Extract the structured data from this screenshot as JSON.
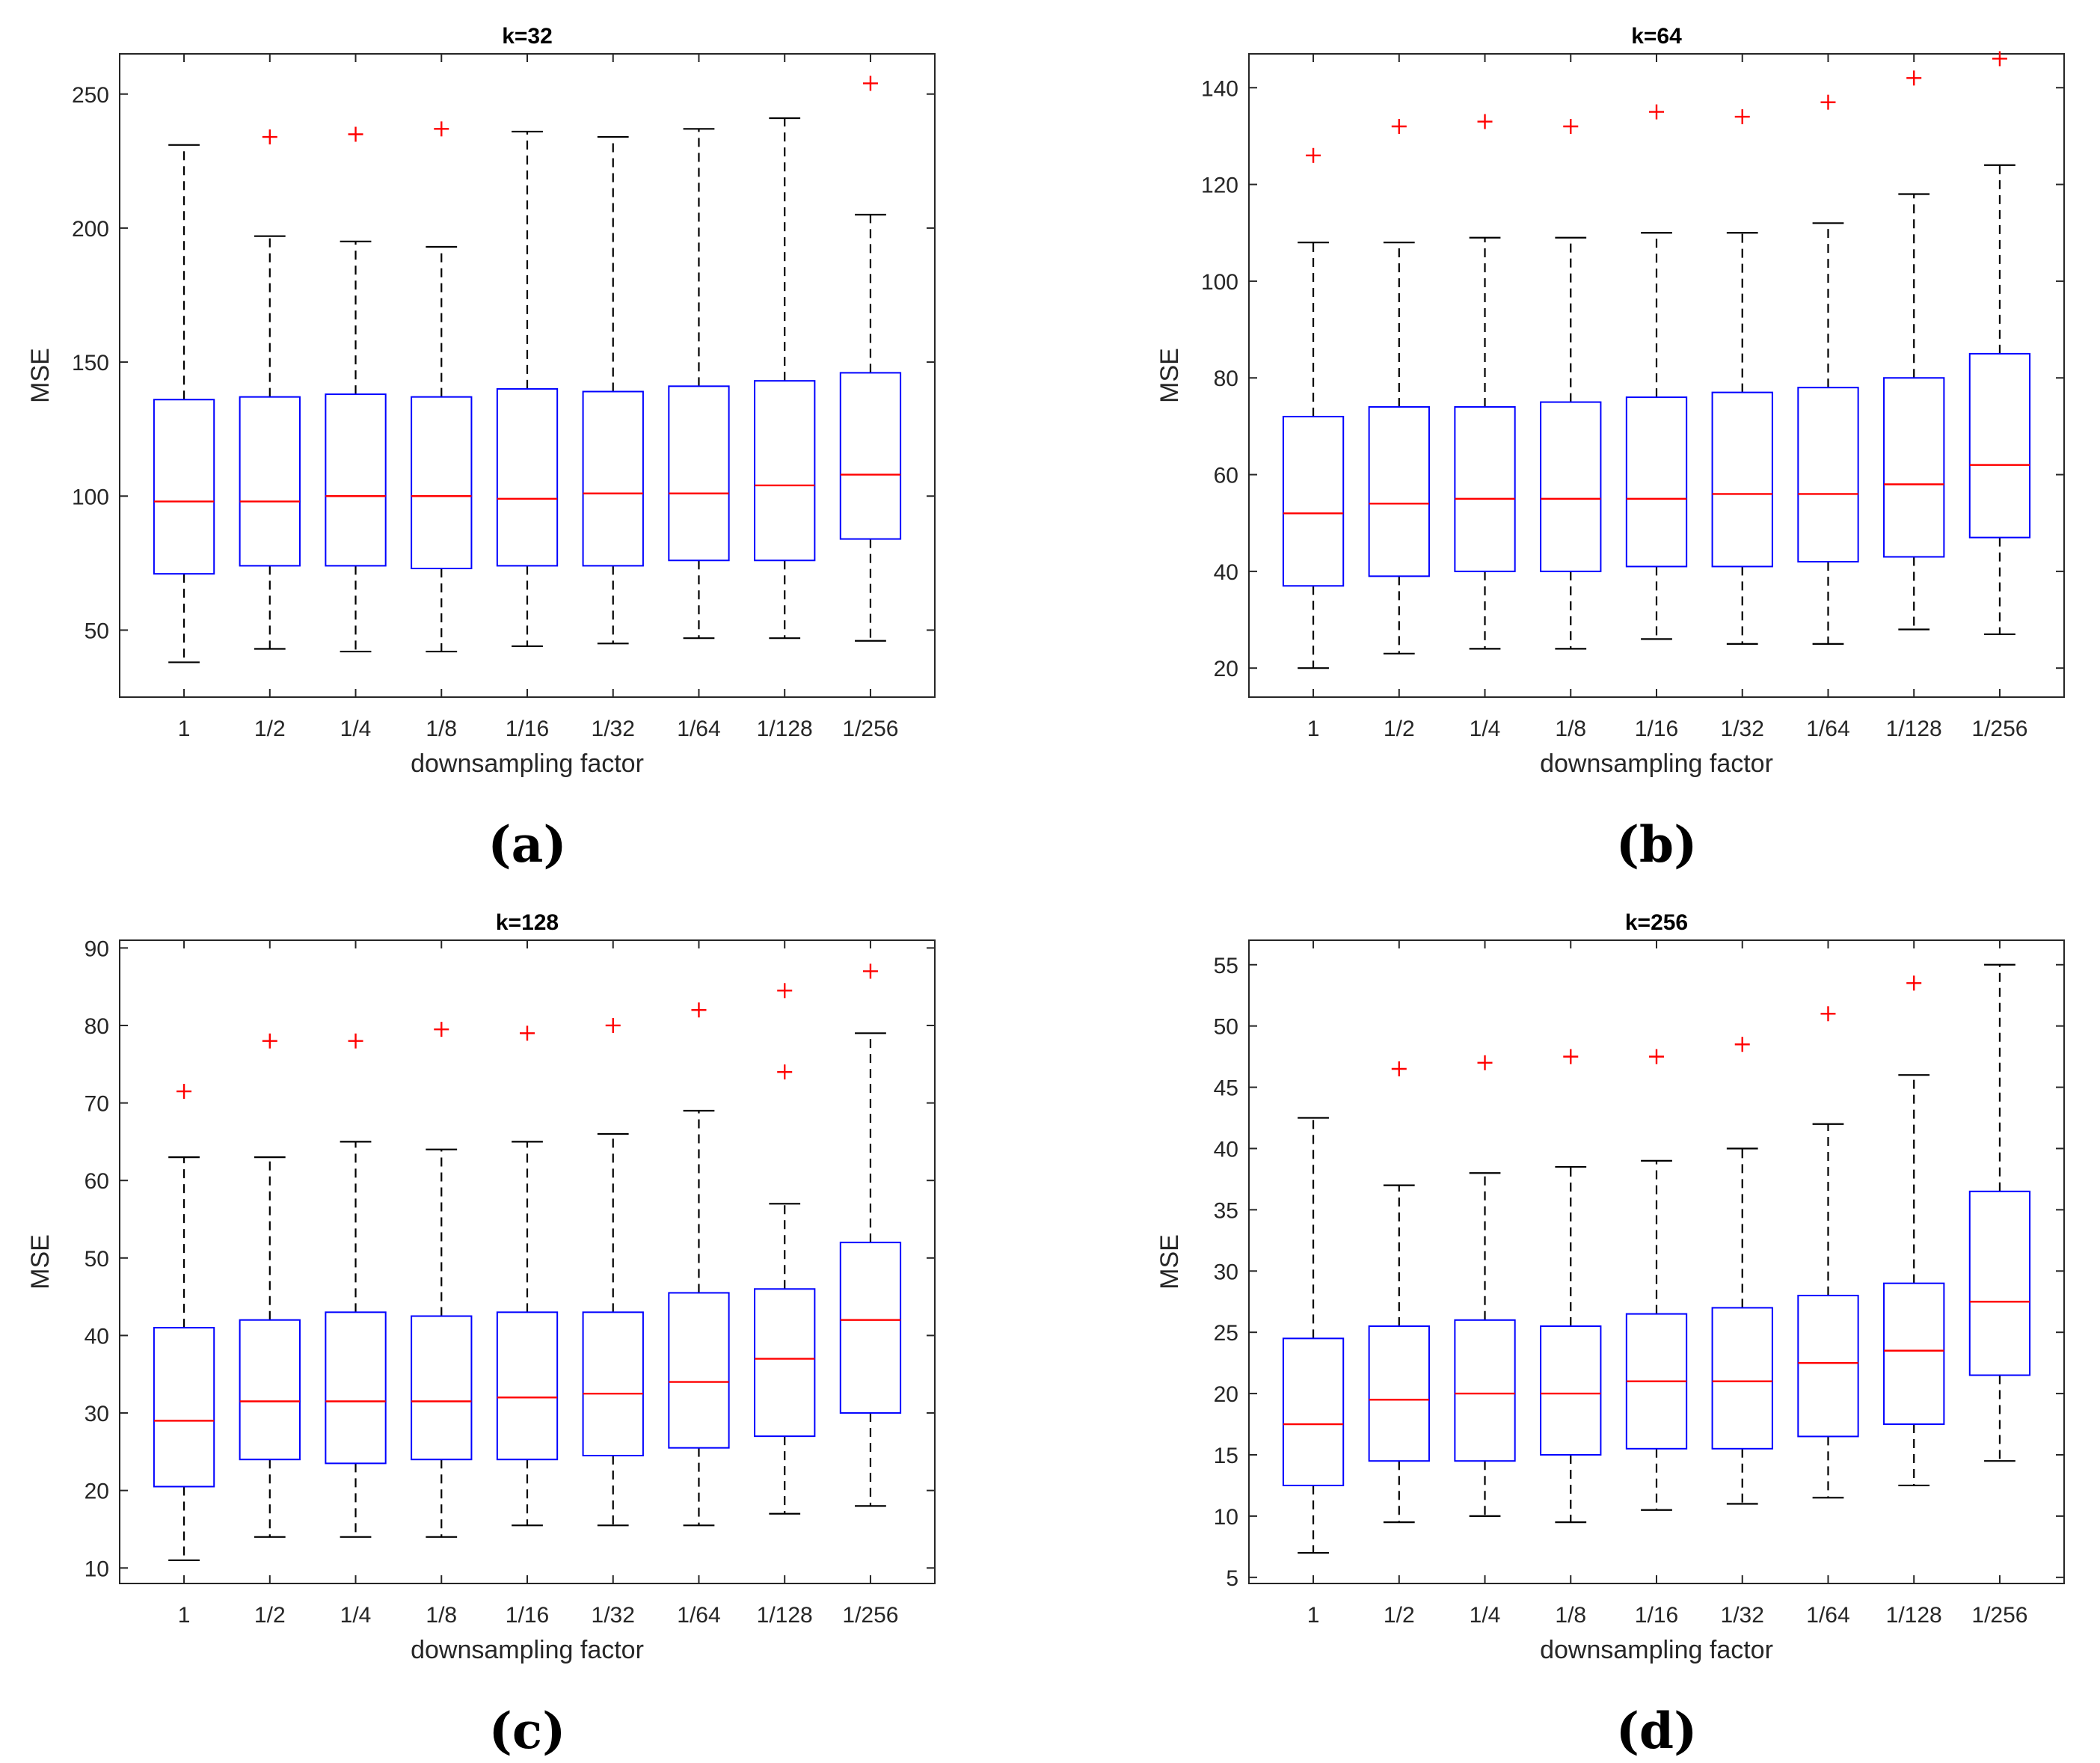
{
  "figure": {
    "colors": {
      "box": "#0000ff",
      "median": "#ff0000",
      "outlier": "#ff0000",
      "whisker": "#000000",
      "axes": "#262626"
    }
  },
  "chart_data": [
    {
      "type": "box",
      "panel_label": "(a)",
      "title": "k=32",
      "xlabel": "downsampling factor",
      "ylabel": "MSE",
      "ylim": [
        25,
        265
      ],
      "yticks": [
        "50",
        "100",
        "150",
        "200",
        "250"
      ],
      "categories": [
        "1",
        "1/2",
        "1/4",
        "1/8",
        "1/16",
        "1/32",
        "1/64",
        "1/128",
        "1/256"
      ],
      "boxes": [
        {
          "whisker_low": 38,
          "q1": 71,
          "median": 98,
          "q3": 136,
          "whisker_high": 231,
          "outliers": []
        },
        {
          "whisker_low": 43,
          "q1": 74,
          "median": 98,
          "q3": 137,
          "whisker_high": 197,
          "outliers": [
            234
          ]
        },
        {
          "whisker_low": 42,
          "q1": 74,
          "median": 100,
          "q3": 138,
          "whisker_high": 195,
          "outliers": [
            235
          ]
        },
        {
          "whisker_low": 42,
          "q1": 73,
          "median": 100,
          "q3": 137,
          "whisker_high": 193,
          "outliers": [
            237
          ]
        },
        {
          "whisker_low": 44,
          "q1": 74,
          "median": 99,
          "q3": 140,
          "whisker_high": 236,
          "outliers": []
        },
        {
          "whisker_low": 45,
          "q1": 74,
          "median": 101,
          "q3": 139,
          "whisker_high": 234,
          "outliers": []
        },
        {
          "whisker_low": 47,
          "q1": 76,
          "median": 101,
          "q3": 141,
          "whisker_high": 237,
          "outliers": []
        },
        {
          "whisker_low": 47,
          "q1": 76,
          "median": 104,
          "q3": 143,
          "whisker_high": 241,
          "outliers": []
        },
        {
          "whisker_low": 46,
          "q1": 84,
          "median": 108,
          "q3": 146,
          "whisker_high": 205,
          "outliers": [
            254
          ]
        }
      ]
    },
    {
      "type": "box",
      "panel_label": "(b)",
      "title": "k=64",
      "xlabel": "downsampling factor",
      "ylabel": "MSE",
      "ylim": [
        14,
        147
      ],
      "yticks": [
        "20",
        "40",
        "60",
        "80",
        "100",
        "120",
        "140"
      ],
      "categories": [
        "1",
        "1/2",
        "1/4",
        "1/8",
        "1/16",
        "1/32",
        "1/64",
        "1/128",
        "1/256"
      ],
      "boxes": [
        {
          "whisker_low": 20,
          "q1": 37,
          "median": 52,
          "q3": 72,
          "whisker_high": 108,
          "outliers": [
            126
          ]
        },
        {
          "whisker_low": 23,
          "q1": 39,
          "median": 54,
          "q3": 74,
          "whisker_high": 108,
          "outliers": [
            132
          ]
        },
        {
          "whisker_low": 24,
          "q1": 40,
          "median": 55,
          "q3": 74,
          "whisker_high": 109,
          "outliers": [
            133
          ]
        },
        {
          "whisker_low": 24,
          "q1": 40,
          "median": 55,
          "q3": 75,
          "whisker_high": 109,
          "outliers": [
            132
          ]
        },
        {
          "whisker_low": 26,
          "q1": 41,
          "median": 55,
          "q3": 76,
          "whisker_high": 110,
          "outliers": [
            135
          ]
        },
        {
          "whisker_low": 25,
          "q1": 41,
          "median": 56,
          "q3": 77,
          "whisker_high": 110,
          "outliers": [
            134
          ]
        },
        {
          "whisker_low": 25,
          "q1": 42,
          "median": 56,
          "q3": 78,
          "whisker_high": 112,
          "outliers": [
            137
          ]
        },
        {
          "whisker_low": 28,
          "q1": 43,
          "median": 58,
          "q3": 80,
          "whisker_high": 118,
          "outliers": [
            142
          ]
        },
        {
          "whisker_low": 27,
          "q1": 47,
          "median": 62,
          "q3": 85,
          "whisker_high": 124,
          "outliers": [
            146
          ]
        }
      ]
    },
    {
      "type": "box",
      "panel_label": "(c)",
      "title": "k=128",
      "xlabel": "downsampling factor",
      "ylabel": "MSE",
      "ylim": [
        8,
        91
      ],
      "yticks": [
        "10",
        "20",
        "30",
        "40",
        "50",
        "60",
        "70",
        "80",
        "90"
      ],
      "categories": [
        "1",
        "1/2",
        "1/4",
        "1/8",
        "1/16",
        "1/32",
        "1/64",
        "1/128",
        "1/256"
      ],
      "boxes": [
        {
          "whisker_low": 11,
          "q1": 20.5,
          "median": 29,
          "q3": 41,
          "whisker_high": 63,
          "outliers": [
            71.5
          ]
        },
        {
          "whisker_low": 14,
          "q1": 24,
          "median": 31.5,
          "q3": 42,
          "whisker_high": 63,
          "outliers": [
            78
          ]
        },
        {
          "whisker_low": 14,
          "q1": 23.5,
          "median": 31.5,
          "q3": 43,
          "whisker_high": 65,
          "outliers": [
            78
          ]
        },
        {
          "whisker_low": 14,
          "q1": 24,
          "median": 31.5,
          "q3": 42.5,
          "whisker_high": 64,
          "outliers": [
            79.5
          ]
        },
        {
          "whisker_low": 15.5,
          "q1": 24,
          "median": 32,
          "q3": 43,
          "whisker_high": 65,
          "outliers": [
            79
          ]
        },
        {
          "whisker_low": 15.5,
          "q1": 24.5,
          "median": 32.5,
          "q3": 43,
          "whisker_high": 66,
          "outliers": [
            80
          ]
        },
        {
          "whisker_low": 15.5,
          "q1": 25.5,
          "median": 34,
          "q3": 45.5,
          "whisker_high": 69,
          "outliers": [
            82
          ]
        },
        {
          "whisker_low": 17,
          "q1": 27,
          "median": 37,
          "q3": 46,
          "whisker_high": 57,
          "outliers": [
            74,
            84.5
          ]
        },
        {
          "whisker_low": 18,
          "q1": 30,
          "median": 42,
          "q3": 52,
          "whisker_high": 79,
          "outliers": [
            87
          ]
        }
      ]
    },
    {
      "type": "box",
      "panel_label": "(d)",
      "title": "k=256",
      "xlabel": "downsampling factor",
      "ylabel": "MSE",
      "ylim": [
        4.5,
        57
      ],
      "yticks": [
        "5",
        "10",
        "15",
        "20",
        "25",
        "30",
        "35",
        "40",
        "45",
        "50",
        "55"
      ],
      "categories": [
        "1",
        "1/2",
        "1/4",
        "1/8",
        "1/16",
        "1/32",
        "1/64",
        "1/128",
        "1/256"
      ],
      "boxes": [
        {
          "whisker_low": 7,
          "q1": 12.5,
          "median": 17.5,
          "q3": 24.5,
          "whisker_high": 42.5,
          "outliers": []
        },
        {
          "whisker_low": 9.5,
          "q1": 14.5,
          "median": 19.5,
          "q3": 25.5,
          "whisker_high": 37,
          "outliers": [
            46.5
          ]
        },
        {
          "whisker_low": 10,
          "q1": 14.5,
          "median": 20,
          "q3": 26,
          "whisker_high": 38,
          "outliers": [
            47
          ]
        },
        {
          "whisker_low": 9.5,
          "q1": 15,
          "median": 20,
          "q3": 25.5,
          "whisker_high": 38.5,
          "outliers": [
            47.5
          ]
        },
        {
          "whisker_low": 10.5,
          "q1": 15.5,
          "median": 21,
          "q3": 26.5,
          "whisker_high": 39,
          "outliers": [
            47.5
          ]
        },
        {
          "whisker_low": 11,
          "q1": 15.5,
          "median": 21,
          "q3": 27,
          "whisker_high": 40,
          "outliers": [
            48.5
          ]
        },
        {
          "whisker_low": 11.5,
          "q1": 16.5,
          "median": 22.5,
          "q3": 28,
          "whisker_high": 42,
          "outliers": [
            51
          ]
        },
        {
          "whisker_low": 12.5,
          "q1": 17.5,
          "median": 23.5,
          "q3": 29,
          "whisker_high": 46,
          "outliers": [
            53.5
          ]
        },
        {
          "whisker_low": 14.5,
          "q1": 21.5,
          "median": 27.5,
          "q3": 36.5,
          "whisker_high": 55,
          "outliers": []
        }
      ]
    }
  ]
}
